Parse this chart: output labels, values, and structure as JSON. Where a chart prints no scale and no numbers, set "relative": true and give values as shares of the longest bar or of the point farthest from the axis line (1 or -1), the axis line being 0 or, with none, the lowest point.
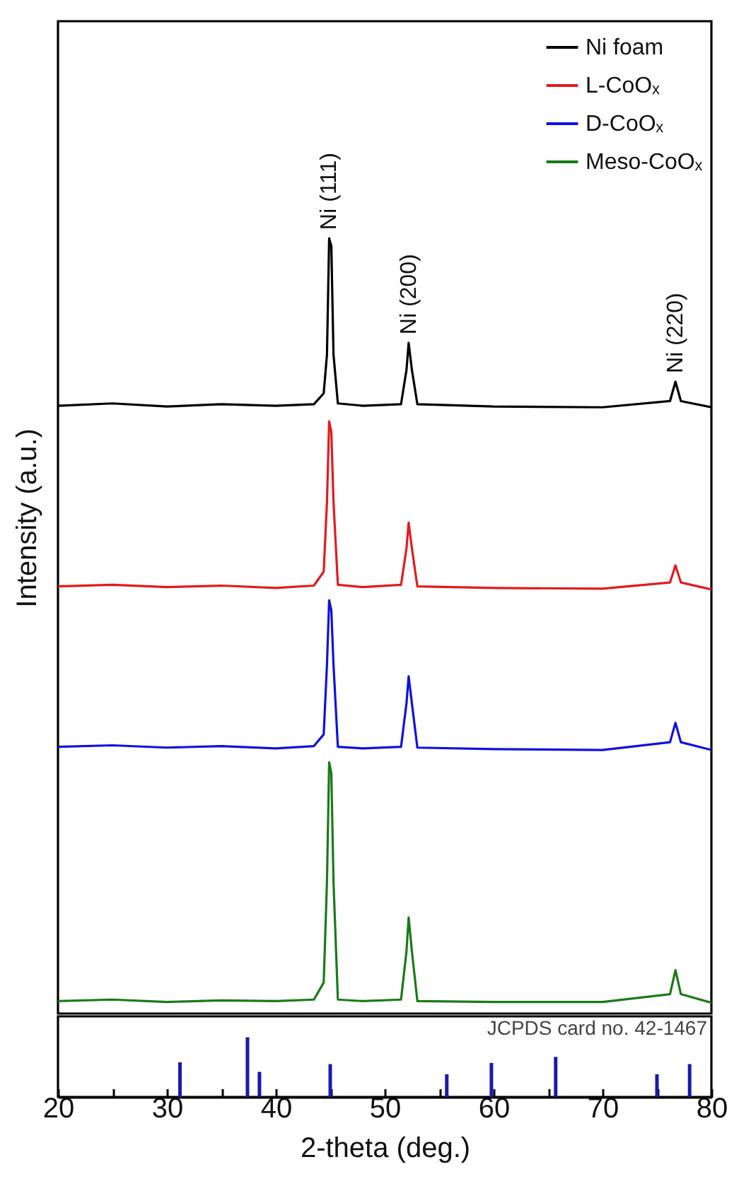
{
  "chart_data": [
    {
      "type": "line",
      "relative": true,
      "ylabel": "Intensity (a.u.)",
      "xlim": [
        20,
        80
      ],
      "tick_labels": false,
      "legend": "top right",
      "x": [
        20,
        25,
        30,
        35,
        40,
        43.5,
        44.4,
        44.7,
        44.9,
        45.1,
        45.3,
        45.7,
        48,
        51.5,
        52.0,
        52.2,
        52.5,
        53.0,
        60,
        70,
        76.2,
        76.7,
        77.2,
        80
      ],
      "series": [
        {
          "name": "Ni foam",
          "color": "#000000",
          "values": [
            0.784,
            0.787,
            0.783,
            0.786,
            0.784,
            0.786,
            0.8,
            0.85,
            1.0,
            0.99,
            0.85,
            0.787,
            0.784,
            0.786,
            0.83,
            0.865,
            0.83,
            0.786,
            0.783,
            0.782,
            0.79,
            0.815,
            0.79,
            0.782
          ]
        },
        {
          "name": "L-CoOₓ",
          "color": "#e31a1c",
          "values": [
            0.551,
            0.553,
            0.55,
            0.552,
            0.549,
            0.552,
            0.57,
            0.66,
            0.764,
            0.75,
            0.66,
            0.553,
            0.55,
            0.553,
            0.6,
            0.633,
            0.6,
            0.551,
            0.549,
            0.548,
            0.556,
            0.578,
            0.556,
            0.547
          ]
        },
        {
          "name": "D-CoOₓ",
          "color": "#1010e0",
          "values": [
            0.344,
            0.346,
            0.343,
            0.345,
            0.342,
            0.345,
            0.36,
            0.45,
            0.533,
            0.52,
            0.45,
            0.344,
            0.342,
            0.344,
            0.4,
            0.435,
            0.4,
            0.343,
            0.341,
            0.34,
            0.35,
            0.375,
            0.35,
            0.34
          ]
        },
        {
          "name": "Meso-CoOₓ",
          "color": "#1a7a1a",
          "values": [
            0.016,
            0.018,
            0.015,
            0.017,
            0.016,
            0.018,
            0.04,
            0.17,
            0.324,
            0.31,
            0.17,
            0.018,
            0.016,
            0.018,
            0.08,
            0.124,
            0.08,
            0.016,
            0.015,
            0.015,
            0.025,
            0.056,
            0.025,
            0.014
          ]
        }
      ],
      "annotations": [
        {
          "text": "Ni (111)",
          "x": 44.9,
          "y": 1.0
        },
        {
          "text": "Ni (200)",
          "x": 52.2,
          "y": 0.865
        },
        {
          "text": "Ni (220)",
          "x": 76.7,
          "y": 0.815
        }
      ]
    },
    {
      "type": "bar",
      "relative": true,
      "xlabel": "2-theta (deg.)",
      "xlim": [
        20,
        80
      ],
      "xticks": [
        20,
        {
          "value": 25,
          "label": null
        },
        30,
        {
          "value": 35,
          "label": null
        },
        40,
        {
          "value": 45,
          "label": null
        },
        50,
        {
          "value": 55,
          "label": null
        },
        60,
        {
          "value": 65,
          "label": null
        },
        70,
        {
          "value": 75,
          "label": null
        },
        80
      ],
      "x": [
        31.2,
        37.4,
        38.5,
        45.0,
        55.7,
        59.8,
        65.7,
        75.0,
        78.0
      ],
      "values": [
        0.58,
        1,
        0.42,
        0.55,
        0.38,
        0.57,
        0.67,
        0.38,
        0.55
      ],
      "color": "#1a1aa8",
      "annotations": [
        "JCPDS card no. 42-1467"
      ]
    }
  ]
}
